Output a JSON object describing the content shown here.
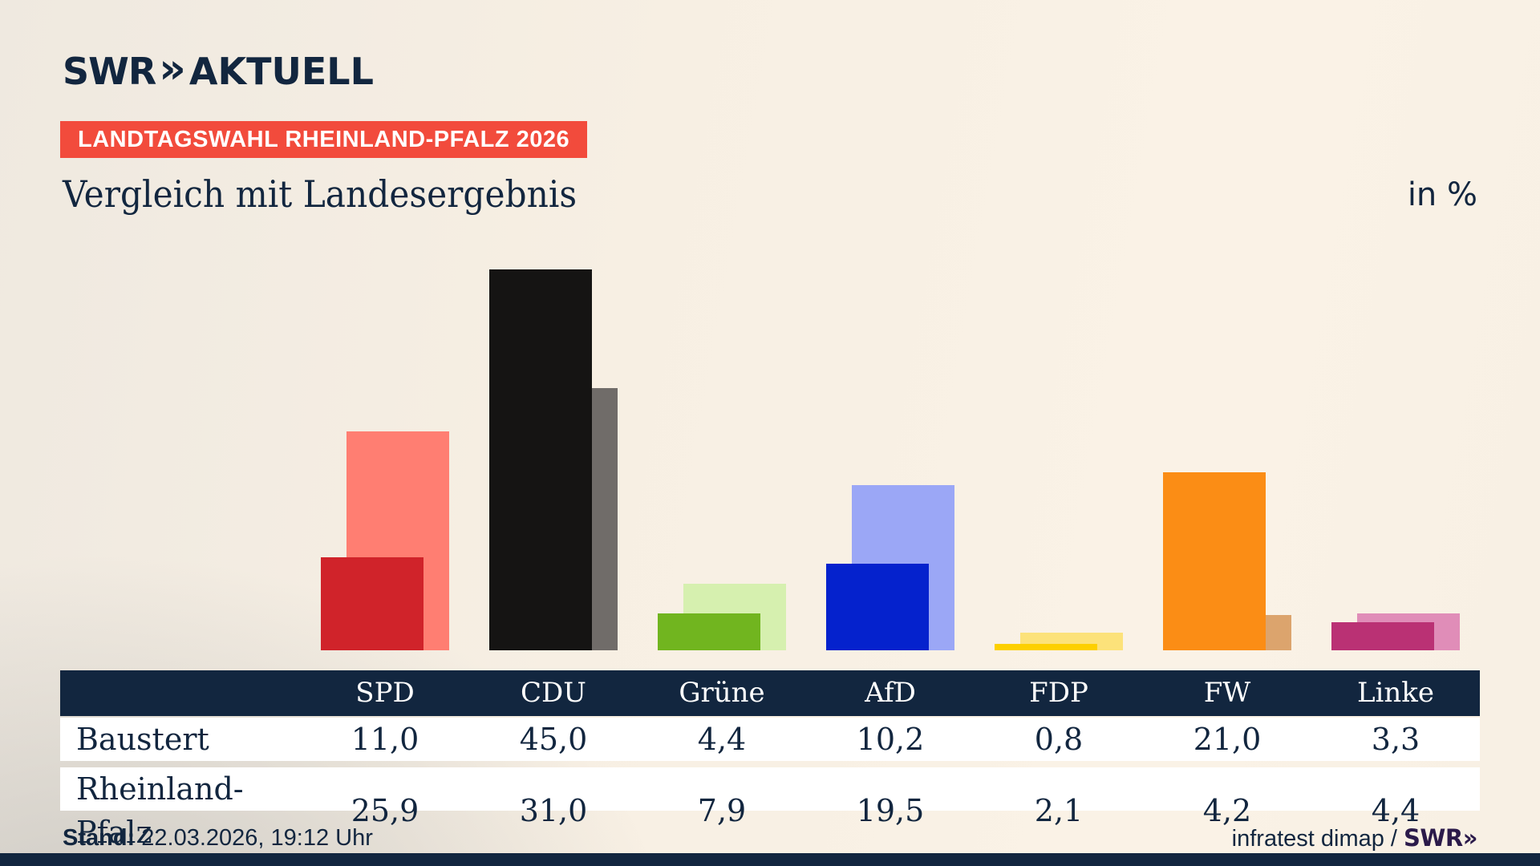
{
  "header": {
    "logo": {
      "brand": "SWR",
      "chevrons": "»",
      "word": "AKTUELL"
    },
    "badge": "LANDTAGSWAHL RHEINLAND-PFALZ 2026",
    "title": "Vergleich mit Landesergebnis",
    "unit_label": "in %"
  },
  "chart_data": {
    "type": "bar",
    "categories": [
      "SPD",
      "CDU",
      "Grüne",
      "AfD",
      "FDP",
      "FW",
      "Linke"
    ],
    "series": [
      {
        "name": "Baustert",
        "values": [
          11.0,
          45.0,
          4.4,
          10.2,
          0.8,
          21.0,
          3.3
        ]
      },
      {
        "name": "Rheinland-Pfalz",
        "values": [
          25.9,
          31.0,
          7.9,
          19.5,
          2.1,
          4.2,
          4.4
        ]
      }
    ],
    "unit": "%",
    "title": "Vergleich mit Landesergebnis",
    "legend_position": "none",
    "grid": false,
    "colors": {
      "front_series": "Baustert",
      "back_series": "Rheinland-Pfalz",
      "front": [
        "#d0232a",
        "#151413",
        "#71b51f",
        "#0522cd",
        "#fdd000",
        "#fb8d15",
        "#ba3174"
      ],
      "back": [
        "#ff7e72",
        "#706c69",
        "#d6f0af",
        "#9ba7f6",
        "#fce27a",
        "#dca46d",
        "#e08db8"
      ]
    }
  },
  "table": {
    "columns": [
      "SPD",
      "CDU",
      "Grüne",
      "AfD",
      "FDP",
      "FW",
      "Linke"
    ],
    "rows": [
      {
        "label": "Baustert",
        "values": [
          "11,0",
          "45,0",
          "4,4",
          "10,2",
          "0,8",
          "21,0",
          "3,3"
        ]
      },
      {
        "label": "Rheinland-Pfalz",
        "values": [
          "25,9",
          "31,0",
          "7,9",
          "19,5",
          "2,1",
          "4,2",
          "4,4"
        ]
      }
    ]
  },
  "footer": {
    "stand_label": "Stand:",
    "stand_value": "22.03.2026, 19:12 Uhr",
    "source": "infratest dimap / ",
    "source_brand": "SWR»"
  },
  "theme": {
    "navy": "#12263f",
    "badge_red": "#f24b3c",
    "row_bg": "#ffffff",
    "brand_purple": "#2b1a4a",
    "background_cream": "#faf2e6"
  }
}
